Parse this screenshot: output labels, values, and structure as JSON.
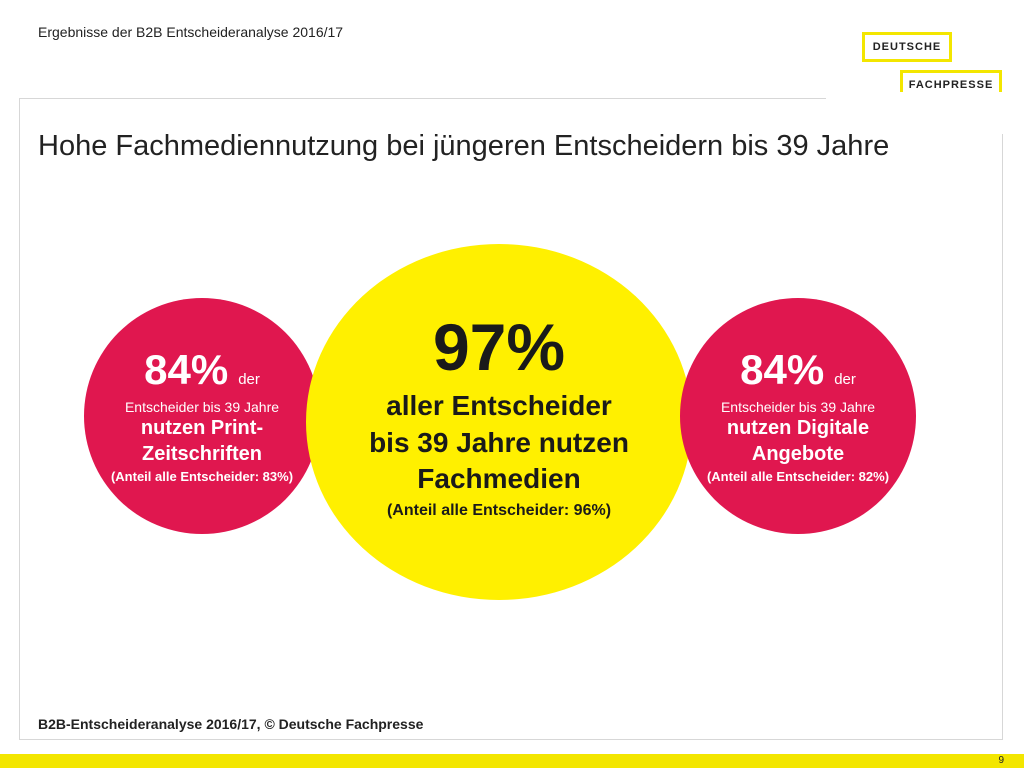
{
  "header": {
    "text": "Ergebnisse der B2B Entscheideranalyse 2016/17"
  },
  "logo": {
    "line1": "DEUTSCHE",
    "line2": "FACHPRESSE",
    "accent_color": "#f3e600"
  },
  "slide": {
    "title": "Hohe Fachmediennutzung bei jüngeren Entscheidern bis 39 Jahre"
  },
  "circles": {
    "left": {
      "percent": "84%",
      "der": "der",
      "sub": "Entscheider bis 39 Jahre",
      "line1": "nutzen Print-",
      "line2": "Zeitschriften",
      "note": "(Anteil alle Entscheider: 83%)",
      "color": "#e0174f"
    },
    "center": {
      "percent": "97%",
      "line1": "aller Entscheider",
      "line2": "bis 39 Jahre nutzen",
      "line3": "Fachmedien",
      "note": "(Anteil alle Entscheider: 96%)",
      "color": "#fff000"
    },
    "right": {
      "percent": "84%",
      "der": "der",
      "sub": "Entscheider bis 39 Jahre",
      "line1": "nutzen Digitale",
      "line2": "Angebote",
      "note": "(Anteil alle Entscheider: 82%)",
      "color": "#e0174f"
    }
  },
  "footer": {
    "source": "B2B-Entscheideranalyse 2016/17, © Deutsche Fachpresse",
    "page_number": "9"
  }
}
